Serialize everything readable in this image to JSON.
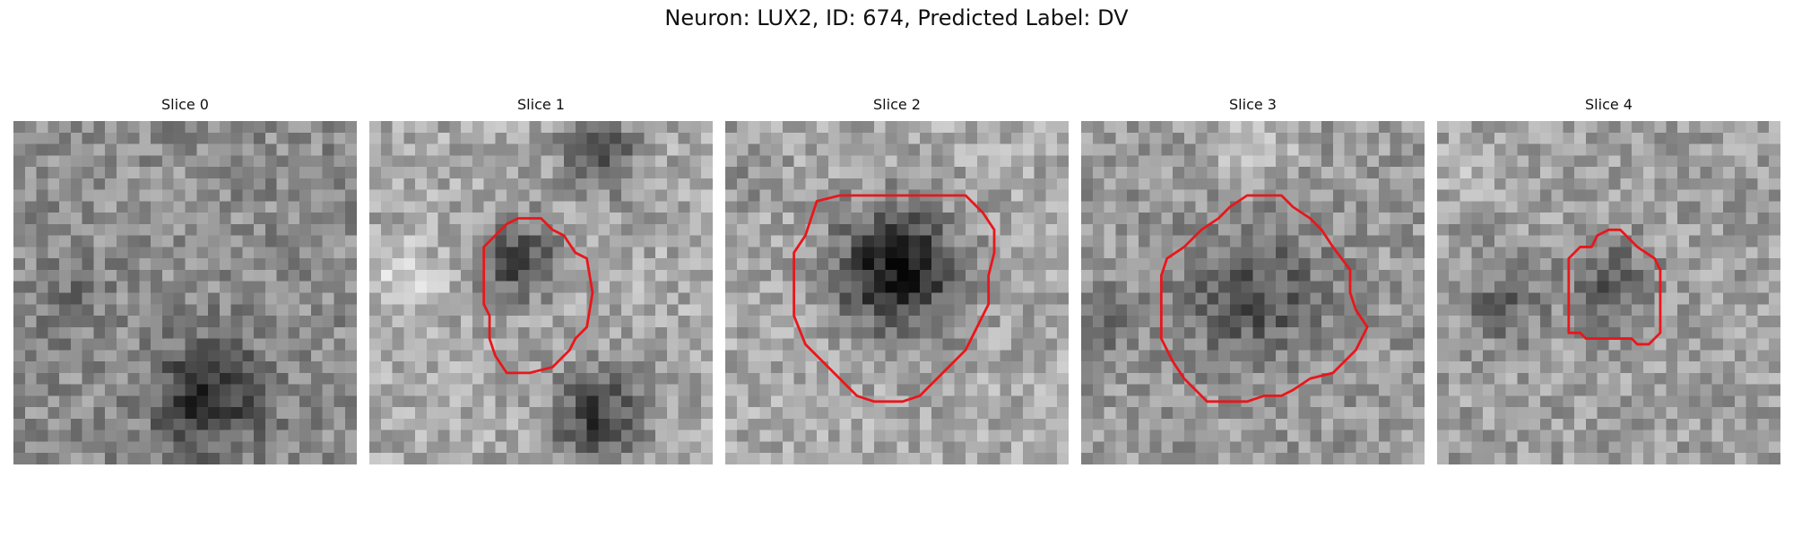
{
  "figure": {
    "suptitle": "Neuron: LUX2, ID: 674, Predicted Label: DV",
    "contour_color": "#e8171b",
    "panels": [
      {
        "title": "Slice 0",
        "has_contour": false
      },
      {
        "title": "Slice 1",
        "has_contour": true
      },
      {
        "title": "Slice 2",
        "has_contour": true
      },
      {
        "title": "Slice 3",
        "has_contour": true
      },
      {
        "title": "Slice 4",
        "has_contour": true
      }
    ]
  }
}
